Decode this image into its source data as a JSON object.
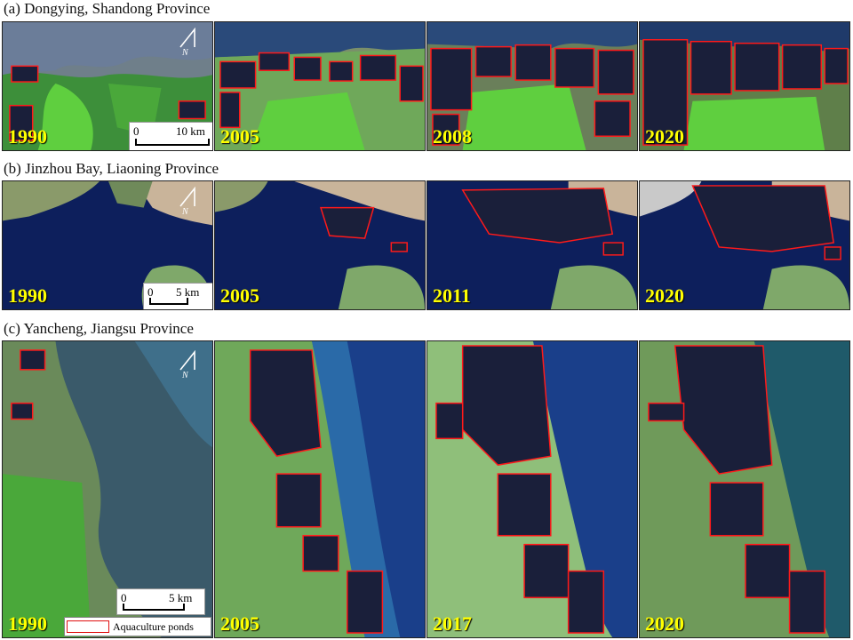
{
  "figure": {
    "sections": [
      {
        "id": "a",
        "title": "(a) Dongying, Shandong Province",
        "years": [
          "1990",
          "2005",
          "2008",
          "2020"
        ],
        "scale_labels": [
          "0",
          "10 km"
        ]
      },
      {
        "id": "b",
        "title": "(b) Jinzhou Bay, Liaoning Province",
        "years": [
          "1990",
          "2005",
          "2011",
          "2020"
        ],
        "scale_labels": [
          "0",
          "5 km"
        ]
      },
      {
        "id": "c",
        "title": "(c) Yancheng, Jiangsu Province",
        "years": [
          "1990",
          "2005",
          "2017",
          "2020"
        ],
        "scale_labels": [
          "0",
          "5 km"
        ]
      }
    ],
    "north_label": "N",
    "legend": {
      "label": "Aquaculture ponds"
    },
    "colors": {
      "pond_outline": "#ff1a1a",
      "year_label": "#ffff00",
      "sea_deep": "#0d1f5c",
      "sea_turbid": "#2a5aa8",
      "vegetation": "#5fcf3f",
      "bare_land": "#8c8f7a",
      "pond_fill": "#1a1f3a"
    }
  }
}
